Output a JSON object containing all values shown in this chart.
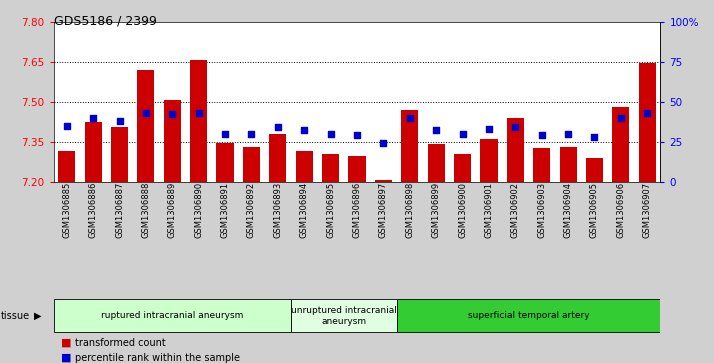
{
  "title": "GDS5186 / 2399",
  "samples": [
    "GSM1306885",
    "GSM1306886",
    "GSM1306887",
    "GSM1306888",
    "GSM1306889",
    "GSM1306890",
    "GSM1306891",
    "GSM1306892",
    "GSM1306893",
    "GSM1306894",
    "GSM1306895",
    "GSM1306896",
    "GSM1306897",
    "GSM1306898",
    "GSM1306899",
    "GSM1306900",
    "GSM1306901",
    "GSM1306902",
    "GSM1306903",
    "GSM1306904",
    "GSM1306905",
    "GSM1306906",
    "GSM1306907"
  ],
  "transformed_count": [
    7.315,
    7.425,
    7.405,
    7.62,
    7.505,
    7.655,
    7.345,
    7.33,
    7.38,
    7.315,
    7.305,
    7.295,
    7.205,
    7.47,
    7.34,
    7.305,
    7.36,
    7.44,
    7.325,
    7.33,
    7.29,
    7.48,
    7.645
  ],
  "percentile_rank": [
    35,
    40,
    38,
    43,
    42,
    43,
    30,
    30,
    34,
    32,
    30,
    29,
    24,
    40,
    32,
    30,
    33,
    34,
    29,
    30,
    28,
    40,
    43
  ],
  "ylim_left": [
    7.2,
    7.8
  ],
  "ylim_right": [
    0,
    100
  ],
  "yticks_left": [
    7.2,
    7.35,
    7.5,
    7.65,
    7.8
  ],
  "yticks_right": [
    0,
    25,
    50,
    75,
    100
  ],
  "ytick_labels_right": [
    "0",
    "25",
    "50",
    "75",
    "100%"
  ],
  "bar_color": "#cc0000",
  "dot_color": "#0000cc",
  "bar_bottom": 7.2,
  "groups": [
    {
      "label": "ruptured intracranial aneurysm",
      "start": 0,
      "end": 9,
      "color": "#ccffcc"
    },
    {
      "label": "unruptured intracranial\naneurysm",
      "start": 9,
      "end": 13,
      "color": "#e0ffe0"
    },
    {
      "label": "superficial temporal artery",
      "start": 13,
      "end": 23,
      "color": "#33cc33"
    }
  ],
  "tissue_label": "tissue",
  "legend_items": [
    {
      "label": "transformed count",
      "color": "#cc0000"
    },
    {
      "label": "percentile rank within the sample",
      "color": "#0000cc"
    }
  ],
  "bg_color": "#d0d0d0",
  "plot_bg_color": "#ffffff",
  "dotted_lines": [
    7.35,
    7.5,
    7.65
  ]
}
